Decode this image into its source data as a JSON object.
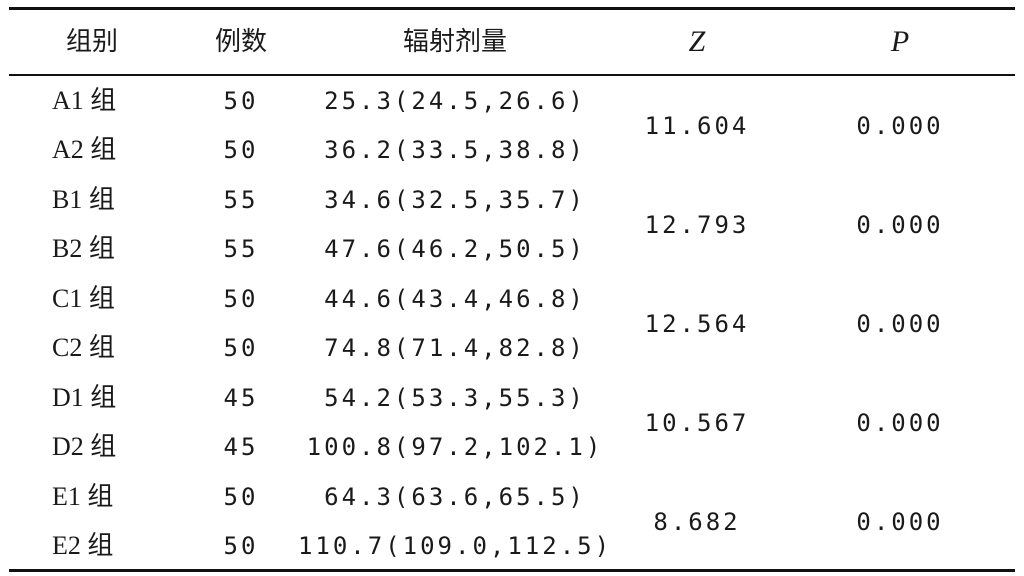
{
  "table": {
    "header": [
      "组别",
      "例数",
      "辐射剂量",
      "Z",
      "P"
    ],
    "groups": [
      {
        "rows": [
          [
            "A1 组",
            "50",
            "25.3(24.5,26.6)"
          ],
          [
            "A2 组",
            "50",
            "36.2(33.5,38.8)"
          ]
        ],
        "z": "11.604",
        "p": "0.000"
      },
      {
        "rows": [
          [
            "B1 组",
            "55",
            "34.6(32.5,35.7)"
          ],
          [
            "B2 组",
            "55",
            "47.6(46.2,50.5)"
          ]
        ],
        "z": "12.793",
        "p": "0.000"
      },
      {
        "rows": [
          [
            "C1 组",
            "50",
            "44.6(43.4,46.8)"
          ],
          [
            "C2 组",
            "50",
            "74.8(71.4,82.8)"
          ]
        ],
        "z": "12.564",
        "p": "0.000"
      },
      {
        "rows": [
          [
            "D1 组",
            "45",
            "54.2(53.3,55.3)"
          ],
          [
            "D2 组",
            "45",
            "100.8(97.2,102.1)"
          ]
        ],
        "z": "10.567",
        "p": "0.000"
      },
      {
        "rows": [
          [
            "E1 组",
            "50",
            "64.3(63.6,65.5)"
          ],
          [
            "E2 组",
            "50",
            "110.7(109.0,112.5)"
          ]
        ],
        "z": "8.682",
        "p": "0.000"
      }
    ]
  }
}
